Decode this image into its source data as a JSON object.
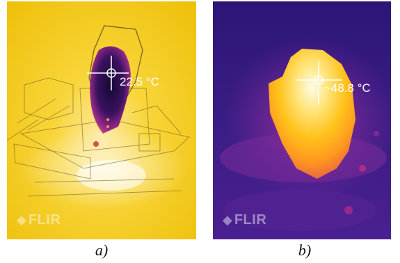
{
  "figure": {
    "panels": [
      {
        "id": "a",
        "caption": "a)",
        "temperature_readout": "22.5 °C",
        "logo_text": "FLIR",
        "palette": "iron",
        "colors": {
          "background": "#f2c40e",
          "hot_white": "#fff8e0",
          "cold_spot": "#1a0a3c",
          "mid": "#9b2b8a"
        }
      },
      {
        "id": "b",
        "caption": "b)",
        "temperature_readout": "~48.8 °C",
        "logo_text": "FLIR",
        "palette": "iron",
        "colors": {
          "background": "#3a1a7a",
          "hot_white": "#fffbe6",
          "hot_yellow": "#ffc21a",
          "mid": "#b0249a"
        }
      }
    ]
  }
}
